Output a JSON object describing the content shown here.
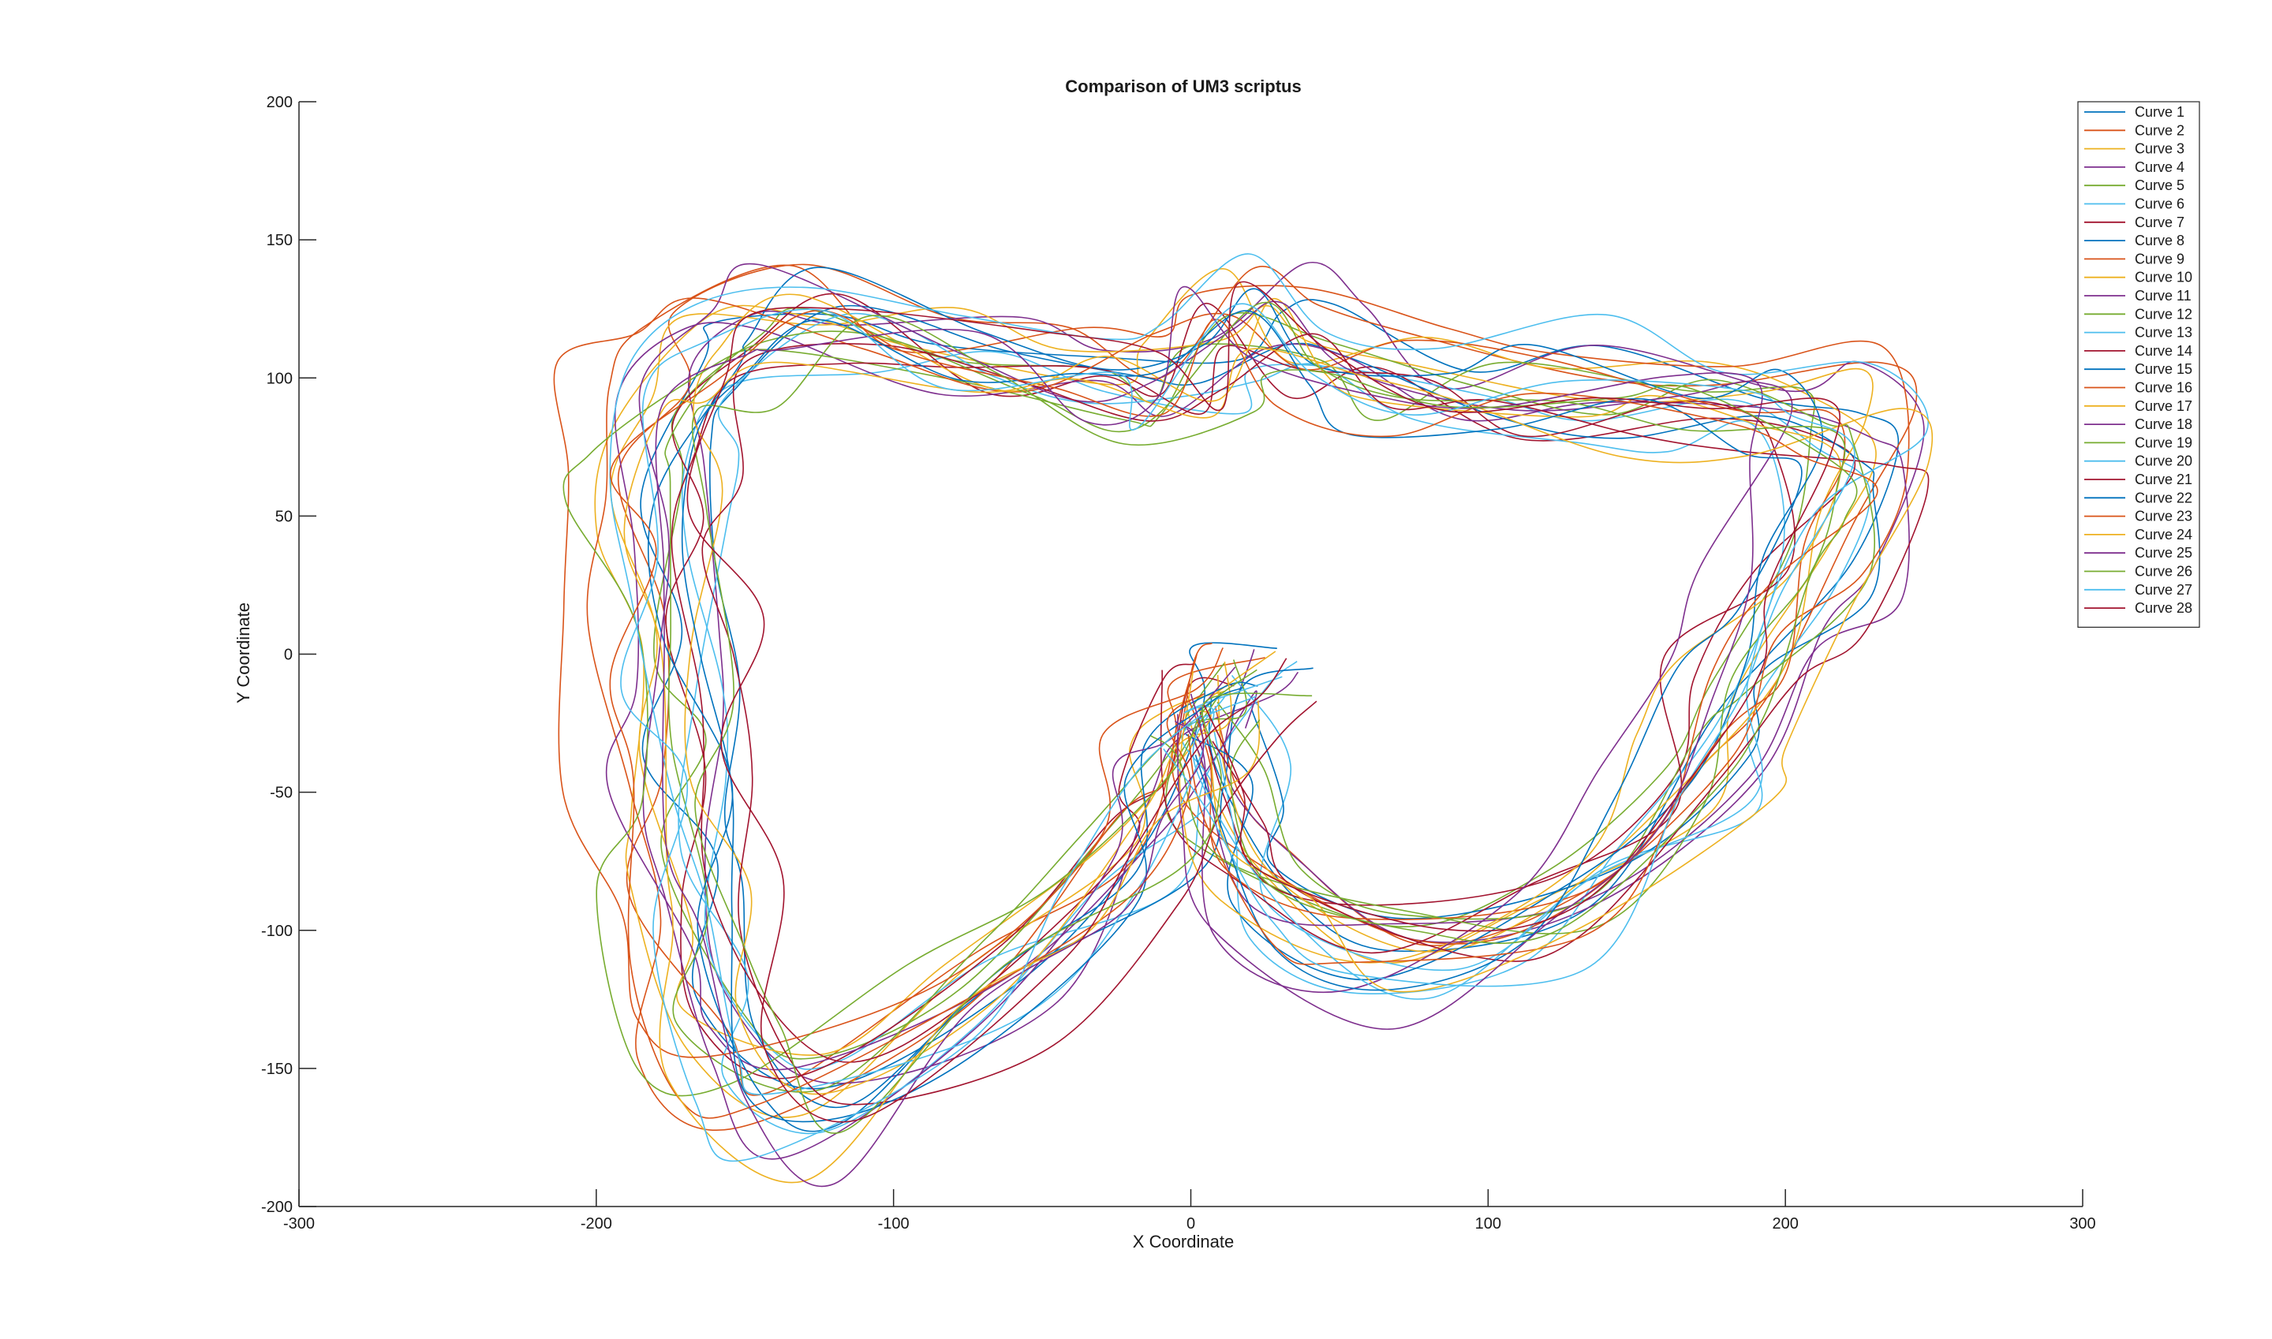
{
  "chart_data": {
    "type": "line",
    "title": "Comparison of UM3 scriptus",
    "xlabel": "X Coordinate",
    "ylabel": "Y Coordinate",
    "xlim": [
      -300,
      300
    ],
    "ylim": [
      -200,
      200
    ],
    "xticks": [
      -300,
      -200,
      -100,
      0,
      100,
      200,
      300
    ],
    "yticks": [
      -200,
      -150,
      -100,
      -50,
      0,
      50,
      100,
      150,
      200
    ],
    "xtick_labels": [
      "-300",
      "-200",
      "-100",
      "0",
      "100",
      "200",
      "300"
    ],
    "ytick_labels": [
      "-200",
      "-150",
      "-100",
      "-50",
      "0",
      "50",
      "100",
      "150",
      "200"
    ],
    "grid": false,
    "legend_position": "top-right",
    "colors": [
      "#0072BD",
      "#D95319",
      "#EDB120",
      "#7E2F8E",
      "#77AC30",
      "#4DBEEE",
      "#A2142F"
    ],
    "series_shape_points": [
      [
        20,
        -15
      ],
      [
        5,
        -20
      ],
      [
        -5,
        -40
      ],
      [
        -25,
        -80
      ],
      [
        -70,
        -130
      ],
      [
        -130,
        -170
      ],
      [
        -160,
        -150
      ],
      [
        -170,
        -100
      ],
      [
        -175,
        -50
      ],
      [
        -178,
        0
      ],
      [
        -180,
        50
      ],
      [
        -175,
        90
      ],
      [
        -160,
        115
      ],
      [
        -130,
        125
      ],
      [
        -80,
        110
      ],
      [
        -30,
        100
      ],
      [
        0,
        100
      ],
      [
        20,
        125
      ],
      [
        45,
        110
      ],
      [
        80,
        100
      ],
      [
        130,
        95
      ],
      [
        180,
        95
      ],
      [
        215,
        90
      ],
      [
        225,
        70
      ],
      [
        210,
        30
      ],
      [
        190,
        -10
      ],
      [
        170,
        -50
      ],
      [
        130,
        -95
      ],
      [
        70,
        -115
      ],
      [
        25,
        -90
      ],
      [
        10,
        -50
      ],
      [
        5,
        -20
      ]
    ],
    "series": [
      {
        "name": "Curve 1"
      },
      {
        "name": "Curve 2"
      },
      {
        "name": "Curve 3"
      },
      {
        "name": "Curve 4"
      },
      {
        "name": "Curve 5"
      },
      {
        "name": "Curve 6"
      },
      {
        "name": "Curve 7"
      },
      {
        "name": "Curve 8"
      },
      {
        "name": "Curve 9"
      },
      {
        "name": "Curve 10"
      },
      {
        "name": "Curve 11"
      },
      {
        "name": "Curve 12"
      },
      {
        "name": "Curve 13"
      },
      {
        "name": "Curve 14"
      },
      {
        "name": "Curve 15"
      },
      {
        "name": "Curve 16"
      },
      {
        "name": "Curve 17"
      },
      {
        "name": "Curve 18"
      },
      {
        "name": "Curve 19"
      },
      {
        "name": "Curve 20"
      },
      {
        "name": "Curve 21"
      },
      {
        "name": "Curve 22"
      },
      {
        "name": "Curve 23"
      },
      {
        "name": "Curve 24"
      },
      {
        "name": "Curve 25"
      },
      {
        "name": "Curve 26"
      },
      {
        "name": "Curve 27"
      },
      {
        "name": "Curve 28"
      }
    ]
  }
}
